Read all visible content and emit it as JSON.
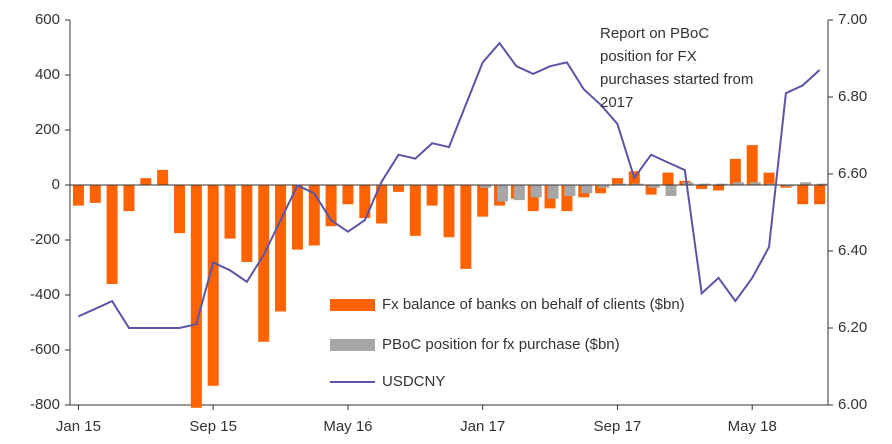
{
  "chart_data": {
    "type": "bar",
    "categories": [
      "Jan 15",
      null,
      null,
      null,
      null,
      null,
      null,
      null,
      "Sep 15",
      null,
      null,
      null,
      null,
      null,
      null,
      null,
      "May 16",
      null,
      null,
      null,
      null,
      null,
      null,
      null,
      "Jan 17",
      null,
      null,
      null,
      null,
      null,
      null,
      null,
      "Sep 17",
      null,
      null,
      null,
      null,
      null,
      null,
      null,
      "May 18",
      null,
      null,
      null,
      null
    ],
    "series": [
      {
        "name": "Fx balance of banks on behalf of clients ($bn)",
        "color": "#ff6200",
        "type": "bar",
        "values": [
          -75,
          -65,
          -360,
          -95,
          25,
          55,
          -175,
          -810,
          -730,
          -195,
          -280,
          -570,
          -460,
          -235,
          -220,
          -150,
          -70,
          -120,
          -140,
          -25,
          -185,
          -75,
          -190,
          -305,
          -115,
          -75,
          -50,
          -95,
          -85,
          -95,
          -45,
          -30,
          25,
          50,
          -35,
          45,
          15,
          -15,
          -20,
          95,
          145,
          45,
          -10,
          -70,
          -70
        ]
      },
      {
        "name": "PBoC position for fx purchase ($bn)",
        "color": "#a6a6a6",
        "type": "bar",
        "values": [
          null,
          null,
          null,
          null,
          null,
          null,
          null,
          null,
          null,
          null,
          null,
          null,
          null,
          null,
          null,
          null,
          null,
          null,
          null,
          null,
          null,
          null,
          null,
          null,
          -10,
          -60,
          -55,
          -45,
          -50,
          -40,
          -30,
          -10,
          5,
          5,
          -10,
          -40,
          10,
          5,
          5,
          10,
          10,
          5,
          -5,
          10,
          5
        ]
      },
      {
        "name": "USDCNY",
        "color": "#5a55a5",
        "type": "line",
        "axis": "y2",
        "values": [
          6.23,
          6.25,
          6.27,
          6.2,
          6.2,
          6.2,
          6.2,
          6.21,
          6.37,
          6.35,
          6.32,
          6.39,
          6.48,
          6.57,
          6.55,
          6.48,
          6.45,
          6.48,
          6.58,
          6.65,
          6.64,
          6.68,
          6.67,
          6.78,
          6.89,
          6.94,
          6.88,
          6.86,
          6.88,
          6.89,
          6.82,
          6.78,
          6.73,
          6.59,
          6.65,
          6.63,
          6.61,
          6.29,
          6.33,
          6.27,
          6.33,
          6.41,
          6.81,
          6.83,
          6.87
        ]
      }
    ],
    "ylim": [
      -800,
      600
    ],
    "yticks": [
      -800,
      -600,
      -400,
      -200,
      0,
      200,
      400,
      600
    ],
    "y2lim": [
      6,
      7
    ],
    "y2ticks": [
      {
        "value": 6,
        "label": "6.00"
      },
      {
        "value": 6.2,
        "label": "6.20"
      },
      {
        "value": 6.4,
        "label": "6.40"
      },
      {
        "value": 6.6,
        "label": "6.60"
      },
      {
        "value": 6.8,
        "label": "6.80"
      },
      {
        "value": 7,
        "label": "7.00"
      }
    ],
    "annotation": [
      "Report on PBoC",
      "position for FX",
      "purchases started from",
      "2017"
    ],
    "legend": "bottom-center",
    "grid": false
  }
}
